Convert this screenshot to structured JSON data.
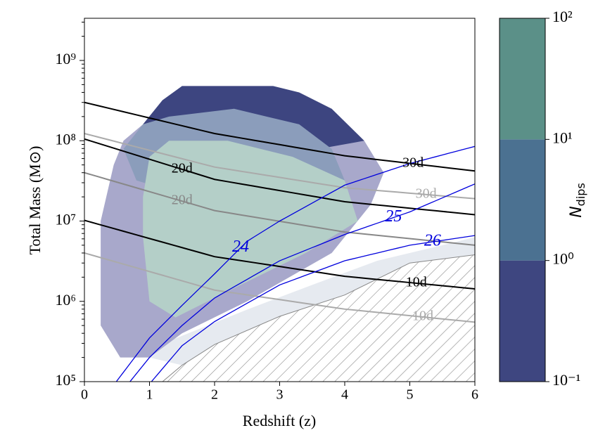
{
  "chart_data": {
    "type": "contour",
    "xlabel": "Redshift (z)",
    "ylabel": "Total Mass (M⊙)",
    "xlim": [
      0,
      6
    ],
    "xticks": [
      0,
      1,
      2,
      3,
      4,
      5,
      6
    ],
    "ylim": [
      100000,
      3350000000
    ],
    "log_y": true,
    "yticks": [
      {
        "value": 100000,
        "label": "10⁵"
      },
      {
        "value": 1000000,
        "label": "10⁶"
      },
      {
        "value": 10000000,
        "label": "10⁷"
      },
      {
        "value": 100000000,
        "label": "10⁸"
      },
      {
        "value": 1000000000,
        "label": "10⁹"
      }
    ],
    "regions": [
      {
        "color": "#e6eaf0",
        "x": [
          1.0,
          1.3,
          2.5,
          3.5,
          4.5,
          5.5,
          6.0,
          6.0,
          5.0,
          4.0,
          3.0,
          2.0,
          1.5
        ],
        "y": [
          200000,
          320000,
          790000,
          1600000,
          3200000,
          5000000,
          6300000,
          3800000,
          3000000,
          1200000,
          650000,
          290000,
          160000
        ]
      },
      {
        "color": "#a8a8cb",
        "x": [
          0.55,
          0.25,
          0.25,
          0.45,
          0.6,
          0.9,
          1.2,
          1.8,
          2.9,
          3.3,
          4.3,
          4.6,
          4.4,
          3.8,
          2.5,
          1.5,
          1.0
        ],
        "y": [
          200000,
          500000,
          10000000,
          50000000,
          100000000,
          160000000,
          320000000,
          400000000,
          400000000,
          250000000,
          100000000,
          40000000,
          16000000,
          4000000,
          1000000,
          400000,
          200000
        ]
      },
      {
        "color": "#3d4580",
        "x": [
          0.9,
          1.2,
          1.5,
          2.9,
          3.3,
          3.8,
          4.3,
          3.6,
          2.5,
          1.5
        ],
        "y": [
          160000000,
          320000000,
          480000000,
          480000000,
          400000000,
          250000000,
          100000000,
          79000000,
          100000000,
          100000000
        ]
      },
      {
        "color": "#8b9dbb",
        "x": [
          0.6,
          0.9,
          1.3,
          2.3,
          3.3,
          3.8,
          4.0,
          3.8,
          3.2,
          2.0,
          0.8
        ],
        "y": [
          79000000,
          160000000,
          200000000,
          250000000,
          160000000,
          79000000,
          32000000,
          12600000,
          7900000,
          16000000,
          32000000
        ]
      },
      {
        "color": "#b4cfc8",
        "x": [
          0.9,
          1.0,
          1.3,
          2.2,
          3.2,
          4.0,
          4.2,
          3.4,
          2.4,
          1.4,
          1.0,
          0.9
        ],
        "y": [
          20000000,
          63000000,
          100000000,
          100000000,
          63000000,
          32000000,
          10000000,
          4000000,
          1600000,
          630000,
          1000000,
          6300000
        ]
      }
    ],
    "hatch": {
      "color": "#888888",
      "x": [
        1.2,
        1.5,
        2,
        3,
        4,
        5,
        6,
        6
      ],
      "y": [
        100000,
        160000,
        290000,
        650000,
        1200000,
        3000000,
        3800000,
        100000
      ]
    },
    "lines": [
      {
        "label": "30d",
        "color": "#000000",
        "x": [
          0,
          2,
          4,
          6
        ],
        "y": [
          300000000,
          123000000,
          65000000,
          42000000
        ]
      },
      {
        "label": "20d",
        "color": "#000000",
        "x": [
          0,
          2,
          4,
          6
        ],
        "y": [
          105000000,
          33000000,
          17400000,
          12000000
        ]
      },
      {
        "label": "10d",
        "color": "#000000",
        "x": [
          0,
          2,
          4,
          6
        ],
        "y": [
          10200000,
          3600000,
          2050000,
          1430000
        ]
      },
      {
        "label": "30d",
        "color": "#aaaaaa",
        "x": [
          0,
          2,
          4,
          6
        ],
        "y": [
          123000000,
          47000000,
          26000000,
          19000000
        ]
      },
      {
        "label": "20d",
        "color": "#888888",
        "x": [
          0,
          2,
          4,
          6
        ],
        "y": [
          40000000,
          13500000,
          7300000,
          5000000
        ]
      },
      {
        "label": "10d",
        "color": "#aaaaaa",
        "x": [
          0,
          2,
          4,
          6
        ],
        "y": [
          4000000,
          1380000,
          800000,
          550000
        ]
      },
      {
        "label": "24",
        "color": "#0000dd",
        "x": [
          0.49,
          1,
          1.5,
          2,
          2.5,
          3,
          4,
          5,
          6
        ],
        "y": [
          100000,
          350000,
          890000,
          2200000,
          5600000,
          10000000,
          28000000,
          52000000,
          85000000
        ]
      },
      {
        "label": "25",
        "color": "#0000dd",
        "x": [
          0.7,
          1,
          1.5,
          2,
          3,
          4,
          5,
          6
        ],
        "y": [
          100000,
          200000,
          500000,
          1100000,
          3200000,
          6800000,
          13000000,
          29000000
        ]
      },
      {
        "label": "26",
        "color": "#0000dd",
        "x": [
          1.03,
          1.5,
          2,
          3,
          4,
          5,
          6
        ],
        "y": [
          100000,
          280000,
          560000,
          1600000,
          3200000,
          5000000,
          6600000
        ]
      }
    ],
    "colorbar": {
      "label": {
        "symbol": "N",
        "subscript": "dips"
      },
      "ticks": [
        {
          "value": 0.1,
          "label": "10⁻¹"
        },
        {
          "value": 1,
          "label": "10⁰"
        },
        {
          "value": 10,
          "label": "10¹"
        },
        {
          "value": 100,
          "label": "10²"
        }
      ],
      "colors": [
        "#3e4680",
        "#4b7191",
        "#5b9088"
      ]
    }
  }
}
